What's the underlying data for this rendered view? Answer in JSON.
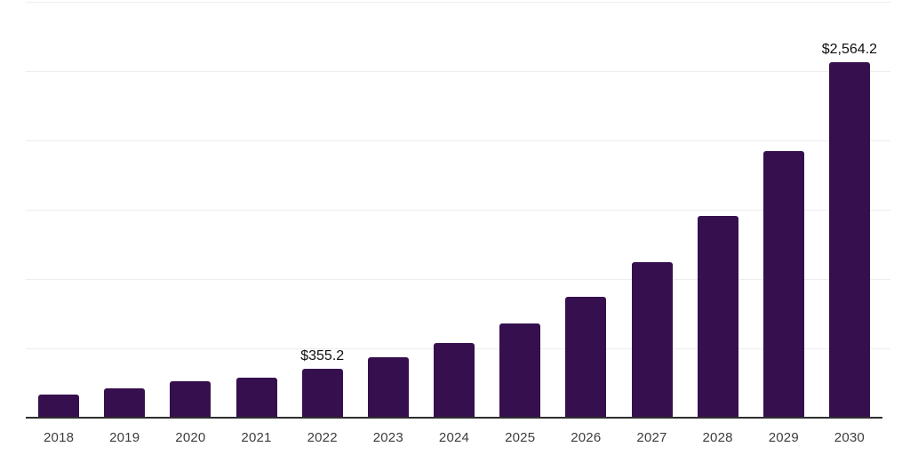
{
  "page": {
    "background": "#ffffff"
  },
  "chart_data": {
    "type": "bar",
    "title": "",
    "xlabel": "",
    "ylabel": "",
    "categories": [
      "2018",
      "2019",
      "2020",
      "2021",
      "2022",
      "2023",
      "2024",
      "2025",
      "2026",
      "2027",
      "2028",
      "2029",
      "2030"
    ],
    "values": [
      168,
      213,
      261,
      291,
      355.2,
      435,
      536,
      678,
      870,
      1120,
      1459,
      1923,
      2564.2
    ],
    "value_labels": [
      {
        "category_index": 4,
        "category": "2022",
        "text": "$355.2"
      },
      {
        "category_index": 12,
        "category": "2030",
        "text": "$2,564.2"
      }
    ],
    "ylim": [
      0,
      3000
    ],
    "gridline_step": 500,
    "grid": "horizontal-only",
    "y_tick_labels_visible": false,
    "legend_position": "none",
    "colors": {
      "bar": "#36104E",
      "axis_line": "#2e2e2e",
      "gridline": "#ededed",
      "tick_label": "#3d3d3d",
      "value_label": "#0f0f0f",
      "background": "#ffffff"
    }
  }
}
